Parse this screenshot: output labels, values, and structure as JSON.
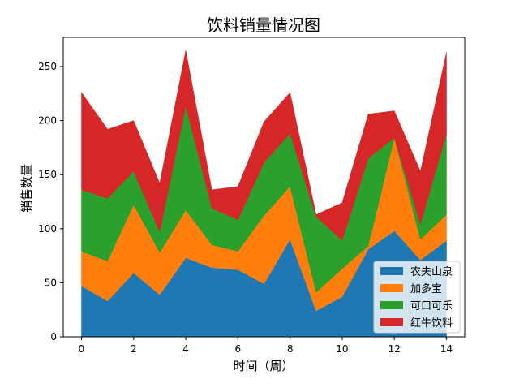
{
  "chart_data": {
    "type": "area",
    "stacked": true,
    "title": "饮料销量情况图",
    "xlabel": "时间（周）",
    "ylabel": "销售数量",
    "x": [
      0,
      1,
      2,
      3,
      4,
      5,
      6,
      7,
      8,
      9,
      10,
      11,
      12,
      13,
      14
    ],
    "xlim": [
      -0.7,
      14.7
    ],
    "ylim": [
      0,
      277
    ],
    "xticks": [
      0,
      2,
      4,
      6,
      8,
      10,
      12,
      14
    ],
    "yticks": [
      0,
      50,
      100,
      150,
      200,
      250
    ],
    "grid": false,
    "legend_position": "lower-right",
    "series": [
      {
        "name": "农夫山泉",
        "color": "#1f77b4",
        "values": [
          47,
          33,
          59,
          39,
          73,
          64,
          62,
          49,
          90,
          24,
          37,
          81,
          98,
          71,
          89
        ]
      },
      {
        "name": "加多宝",
        "color": "#ff7f0e",
        "values": [
          32,
          37,
          63,
          39,
          44,
          21,
          17,
          63,
          49,
          17,
          26,
          3,
          86,
          19,
          24
        ]
      },
      {
        "name": "可口可乐",
        "color": "#2ca02c",
        "values": [
          57,
          58,
          31,
          19,
          96,
          34,
          29,
          49,
          49,
          70,
          26,
          81,
          0,
          14,
          75
        ]
      },
      {
        "name": "红牛饮料",
        "color": "#d62728",
        "values": [
          90,
          64,
          47,
          45,
          52,
          17,
          31,
          38,
          38,
          2,
          35,
          41,
          25,
          49,
          75
        ]
      }
    ]
  }
}
